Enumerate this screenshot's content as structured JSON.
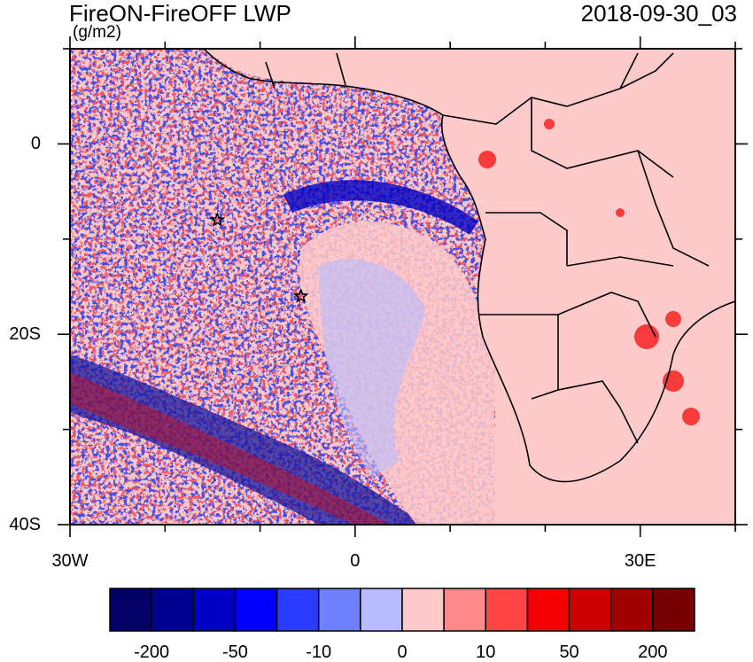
{
  "title": "FireON-FireOFF LWP",
  "units": "(g/m2)",
  "timestamp": "2018-09-30_03",
  "map": {
    "lon_range": [
      -30,
      40
    ],
    "lat_range": [
      -40,
      10
    ],
    "x_ticks": [
      {
        "value": -30,
        "label": "30W"
      },
      {
        "value": 0,
        "label": "0"
      },
      {
        "value": 30,
        "label": "30E"
      }
    ],
    "y_ticks": [
      {
        "value": 0,
        "label": "0"
      },
      {
        "value": -20,
        "label": "20S"
      },
      {
        "value": -40,
        "label": "40S"
      }
    ],
    "markers": [
      {
        "name": "star-marker-1",
        "lon": -14.5,
        "lat": -8
      },
      {
        "name": "star-marker-2",
        "lon": -5.7,
        "lat": -16
      }
    ]
  },
  "colorbar": {
    "colors": [
      "#000066",
      "#00008f",
      "#0000c4",
      "#0000ff",
      "#2a3cff",
      "#6e80ff",
      "#b8bcff",
      "#ffcaca",
      "#ff8a8a",
      "#ff4545",
      "#f50000",
      "#cc0000",
      "#a00000",
      "#760000"
    ],
    "labels": [
      "-200",
      "-50",
      "-10",
      "0",
      "10",
      "50",
      "200"
    ]
  }
}
